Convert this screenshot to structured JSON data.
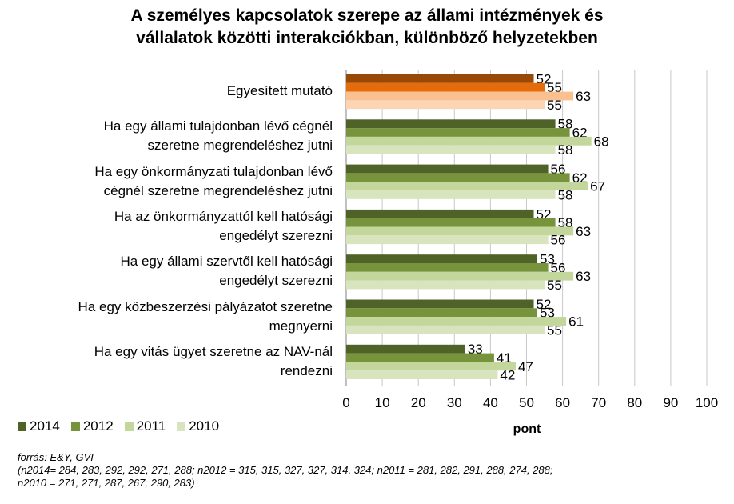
{
  "chart_data": {
    "type": "bar",
    "orientation": "horizontal",
    "title_lines": [
      "A személyes kapcsolatok szerepe az állami intézmények és",
      "vállalatok közötti interakciókban, különböző helyzetekben"
    ],
    "categories": [
      [
        "Egyesített mutató"
      ],
      [
        "Ha egy állami tulajdonban lévő cégnél",
        "szeretne megrendeléshez jutni"
      ],
      [
        "Ha egy önkormányzati tulajdonban lévő",
        "cégnél szeretne megrendeléshez jutni"
      ],
      [
        "Ha az önkormányzattól kell hatósági",
        "engedélyt szerezni"
      ],
      [
        "Ha egy állami szervtől kell hatósági",
        "engedélyt szerezni"
      ],
      [
        "Ha egy közbeszerzési pályázatot szeretne",
        "megnyerni"
      ],
      [
        "Ha egy vitás ügyet szeretne az NAV-nál",
        "rendezni"
      ]
    ],
    "series": [
      {
        "name": "2014",
        "values": [
          52,
          58,
          56,
          52,
          53,
          52,
          33
        ]
      },
      {
        "name": "2012",
        "values": [
          55,
          62,
          62,
          58,
          56,
          53,
          41
        ]
      },
      {
        "name": "2011",
        "values": [
          63,
          68,
          67,
          63,
          63,
          61,
          47
        ]
      },
      {
        "name": "2010",
        "values": [
          55,
          58,
          58,
          56,
          55,
          55,
          42
        ]
      }
    ],
    "series_colors": [
      "#4f6228",
      "#77933c",
      "#c3d69b",
      "#d7e4bd"
    ],
    "highlight_colors": [
      "#984807",
      "#e46c0a",
      "#fac090",
      "#fcd5b5"
    ],
    "xlabel": "pont",
    "xlim": [
      0,
      100
    ],
    "xticks": [
      0,
      10,
      20,
      30,
      40,
      50,
      60,
      70,
      80,
      90,
      100
    ],
    "legend_position": "bottom-left"
  },
  "footer": {
    "source": "forrás: E&Y, GVI",
    "note_line1": "(n2014= 284, 283, 292, 292, 271, 288; n2012 = 315, 315, 327, 327, 314, 324; n2011 = 281, 282, 291, 288, 274, 288;",
    "note_line2": "n2010 = 271, 271, 287, 267, 290, 283)"
  }
}
